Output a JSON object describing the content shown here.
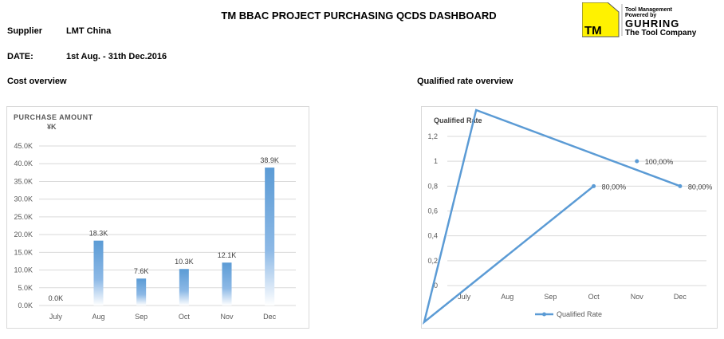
{
  "header": {
    "title": "TM BBAC PROJECT PURCHASING QCDS DASHBOARD",
    "logo": {
      "mark": "TM",
      "line1": "Tool Management",
      "line2": "Powered by",
      "brand": "GUHRING",
      "tagline": "The Tool Company",
      "color": "#FFF200"
    }
  },
  "info": {
    "supplier_label": "Supplier",
    "supplier_value": "LMT China",
    "date_label": "DATE:",
    "date_value": "1st Aug. - 31th Dec.2016"
  },
  "sections": {
    "cost": "Cost overview",
    "qualified": "Qualified rate overview"
  },
  "chart_data": [
    {
      "type": "bar",
      "title": "PURCHASE AMOUNT",
      "subtitle": "¥K",
      "categories": [
        "July",
        "Aug",
        "Sep",
        "Oct",
        "Nov",
        "Dec"
      ],
      "values": [
        0.0,
        18.3,
        7.6,
        10.3,
        12.1,
        38.9
      ],
      "data_labels": [
        "0.0K",
        "18.3K",
        "7.6K",
        "10.3K",
        "12.1K",
        "38.9K"
      ],
      "ylim": [
        0,
        45
      ],
      "yticks": [
        "0.0K",
        "5.0K",
        "10.0K",
        "15.0K",
        "20.0K",
        "25.0K",
        "30.0K",
        "35.0K",
        "40.0K",
        "45.0K"
      ],
      "grid": true,
      "color": "#5B9BD5"
    },
    {
      "type": "line",
      "title": "Qualified Rate",
      "categories": [
        "July",
        "Aug",
        "Sep",
        "Oct",
        "Nov",
        "Dec"
      ],
      "series": [
        {
          "name": "Qualified Rate",
          "values": [
            null,
            null,
            null,
            0.8,
            1.0,
            0.8
          ],
          "data_labels": [
            "",
            "",
            "",
            "80,00%",
            "100,00%",
            "80,00%"
          ]
        }
      ],
      "ylim": [
        0,
        1.2
      ],
      "yticks": [
        "0",
        "0,2",
        "0,4",
        "0,6",
        "0,8",
        "1",
        "1,2"
      ],
      "grid": true,
      "legend": "bottom",
      "color": "#5B9BD5"
    }
  ]
}
